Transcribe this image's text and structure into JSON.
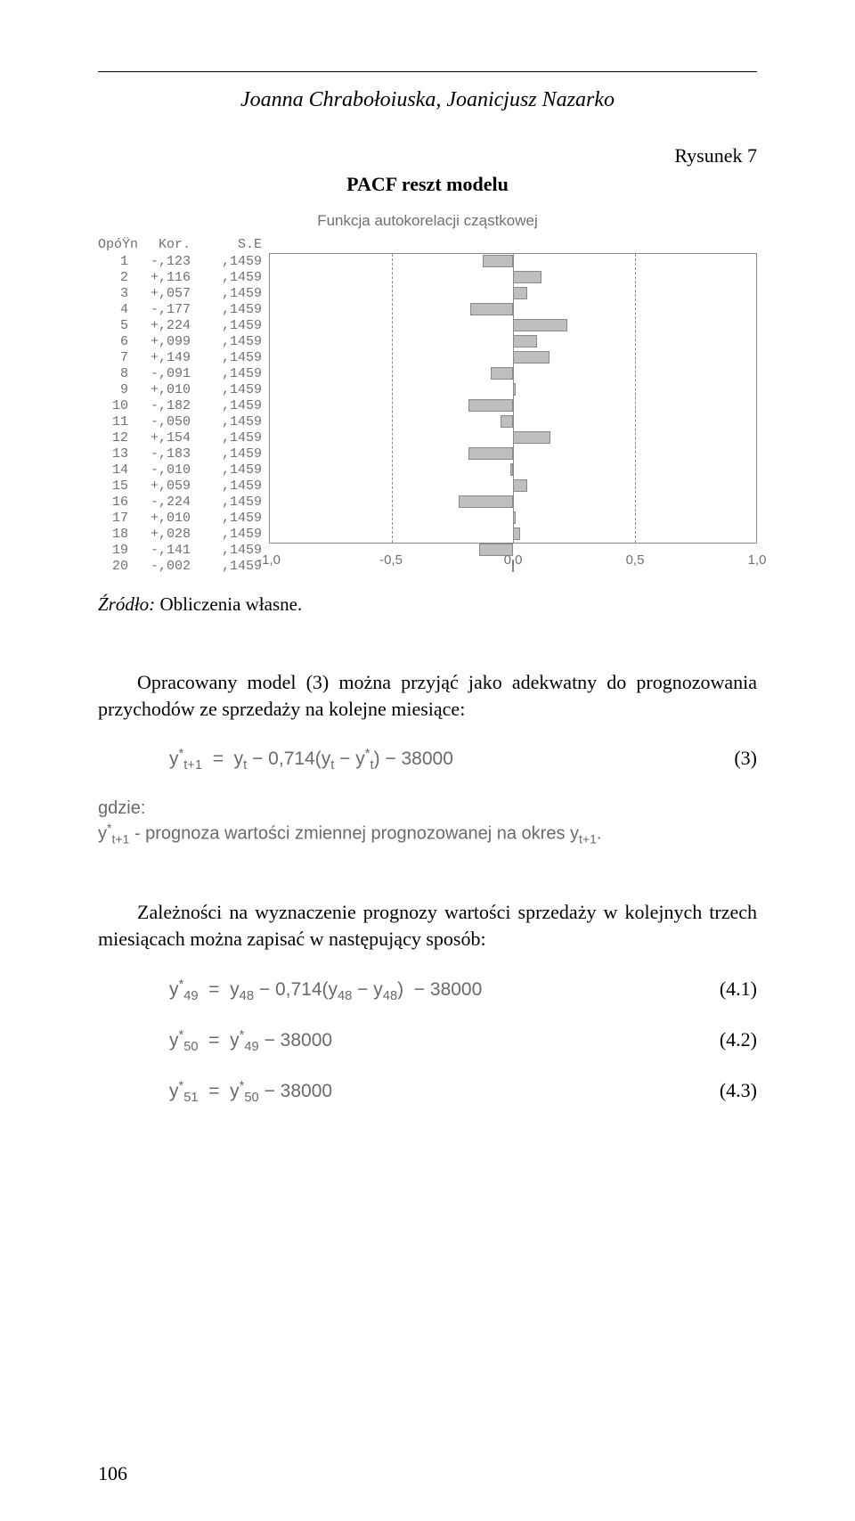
{
  "authors": "Joanna Chrabołoiuska, Joanicjusz Nazarko",
  "figure_label": "Rysunek 7",
  "figure_caption": "PACF reszt modelu",
  "chart": {
    "title": "Funkcja autokorelacji cząstkowej",
    "header_lag": "OpóŸn",
    "header_kor": "Kor.",
    "header_se": "S.E",
    "rows": [
      {
        "lag": "1",
        "kor": "-,123",
        "se": ",1459",
        "val": -0.123
      },
      {
        "lag": "2",
        "kor": "+,116",
        "se": ",1459",
        "val": 0.116
      },
      {
        "lag": "3",
        "kor": "+,057",
        "se": ",1459",
        "val": 0.057
      },
      {
        "lag": "4",
        "kor": "-,177",
        "se": ",1459",
        "val": -0.177
      },
      {
        "lag": "5",
        "kor": "+,224",
        "se": ",1459",
        "val": 0.224
      },
      {
        "lag": "6",
        "kor": "+,099",
        "se": ",1459",
        "val": 0.099
      },
      {
        "lag": "7",
        "kor": "+,149",
        "se": ",1459",
        "val": 0.149
      },
      {
        "lag": "8",
        "kor": "-,091",
        "se": ",1459",
        "val": -0.091
      },
      {
        "lag": "9",
        "kor": "+,010",
        "se": ",1459",
        "val": 0.01
      },
      {
        "lag": "10",
        "kor": "-,182",
        "se": ",1459",
        "val": -0.182
      },
      {
        "lag": "11",
        "kor": "-,050",
        "se": ",1459",
        "val": -0.05
      },
      {
        "lag": "12",
        "kor": "+,154",
        "se": ",1459",
        "val": 0.154
      },
      {
        "lag": "13",
        "kor": "-,183",
        "se": ",1459",
        "val": -0.183
      },
      {
        "lag": "14",
        "kor": "-,010",
        "se": ",1459",
        "val": -0.01
      },
      {
        "lag": "15",
        "kor": "+,059",
        "se": ",1459",
        "val": 0.059
      },
      {
        "lag": "16",
        "kor": "-,224",
        "se": ",1459",
        "val": -0.224
      },
      {
        "lag": "17",
        "kor": "+,010",
        "se": ",1459",
        "val": 0.01
      },
      {
        "lag": "18",
        "kor": "+,028",
        "se": ",1459",
        "val": 0.028
      },
      {
        "lag": "19",
        "kor": "-,141",
        "se": ",1459",
        "val": -0.141
      },
      {
        "lag": "20",
        "kor": "-,002",
        "se": ",1459",
        "val": -0.002
      }
    ],
    "xlim_min": -1.0,
    "xlim_max": 1.0,
    "x_ticks": [
      {
        "pos": 0.0,
        "label": "-1,0"
      },
      {
        "pos": 0.25,
        "label": "-0,5"
      },
      {
        "pos": 0.5,
        "label": "0,0"
      },
      {
        "pos": 0.75,
        "label": "0,5"
      },
      {
        "pos": 1.0,
        "label": "1,0"
      }
    ],
    "ci_left_pct": 25,
    "ci_right_pct": 75,
    "bar_color": "#bfbfbf",
    "bar_border": "#8a8a8a",
    "grid_color": "#8a8a8a",
    "text_color": "#707070"
  },
  "source_label": "Źródło:",
  "source_text": " Obliczenia własne.",
  "para1": "Opracowany model (3) można przyjąć jako adekwatny do prognozowania przychodów ze sprzedaży na kolejne miesiące:",
  "eq3_num": "(3)",
  "where_label": "gdzie:",
  "where_desc_prefix": " - prognoza wartości zmiennej prognozowanej na okres y",
  "para2": "Zależności na wyznaczenie prognozy wartości sprzedaży w kolejnych trzech miesiącach można zapisać w następujący sposób:",
  "eq41_num": "(4.1)",
  "eq42_num": "(4.2)",
  "eq43_num": "(4.3)",
  "page_number": "106"
}
